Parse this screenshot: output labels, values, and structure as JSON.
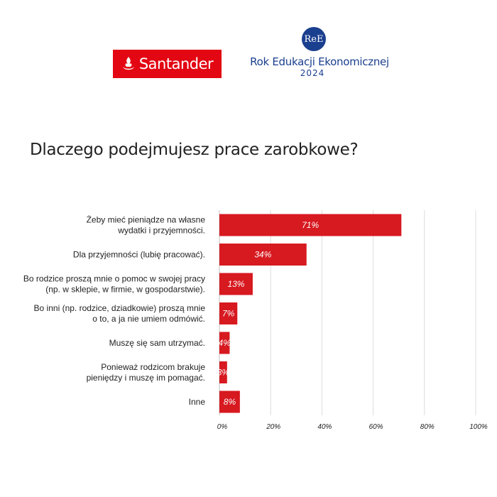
{
  "logos": {
    "santander": {
      "text": "Santander",
      "color": "#e30613"
    },
    "ree": {
      "badge": "ReE",
      "name": "Rok Edukacji Ekonomicznej",
      "year": "2024",
      "color": "#1b3f8f"
    }
  },
  "chart_data": {
    "type": "bar",
    "orientation": "horizontal",
    "title": "Dlaczego podejmujesz prace zarobkowe?",
    "xlabel": "",
    "ylabel": "",
    "xlim": [
      0,
      100
    ],
    "grid": true,
    "bar_color": "#d71920",
    "categories": [
      [
        "Żeby mieć pieniądze na własne",
        "wydatki i przyjemności."
      ],
      [
        "Dla przyjemności (lubię pracować)."
      ],
      [
        "Bo rodzice proszą mnie o pomoc w swojej pracy",
        "(np. w sklepie, w firmie, w gospodarstwie)."
      ],
      [
        "Bo inni (np. rodzice, dziadkowie) proszą mnie",
        "o to, a ja nie umiem odmówić."
      ],
      [
        "Muszę się sam utrzymać."
      ],
      [
        "Ponieważ rodzicom brakuje",
        "pieniędzy i muszę im pomagać."
      ],
      [
        "Inne"
      ]
    ],
    "values": [
      71,
      34,
      13,
      7,
      4,
      3,
      8
    ],
    "value_labels": [
      "71%",
      "34%",
      "13%",
      "7%",
      "4%",
      "3%",
      "8%"
    ],
    "x_ticks": [
      0,
      20,
      40,
      60,
      80,
      100
    ],
    "x_tick_labels": [
      "0%",
      "20%",
      "40%",
      "60%",
      "80%",
      "100%"
    ]
  }
}
